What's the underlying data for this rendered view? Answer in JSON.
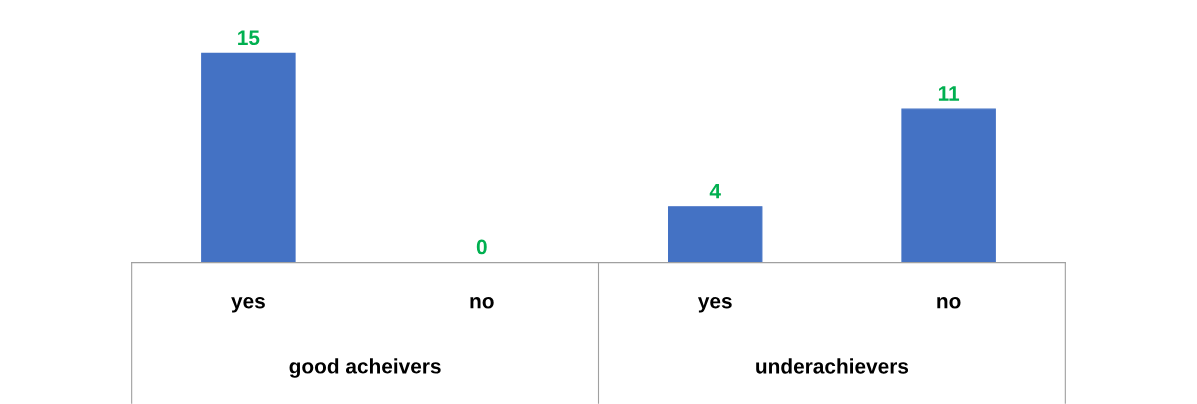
{
  "chart_data": {
    "type": "bar",
    "categories": [
      "yes",
      "no",
      "yes",
      "no"
    ],
    "values": [
      15,
      0,
      4,
      11
    ],
    "color": "#4472c4",
    "data_labels": true,
    "grid": false,
    "legend": false,
    "tick_labels": "x",
    "annotations": [
      "good acheivers",
      "underachievers"
    ]
  }
}
